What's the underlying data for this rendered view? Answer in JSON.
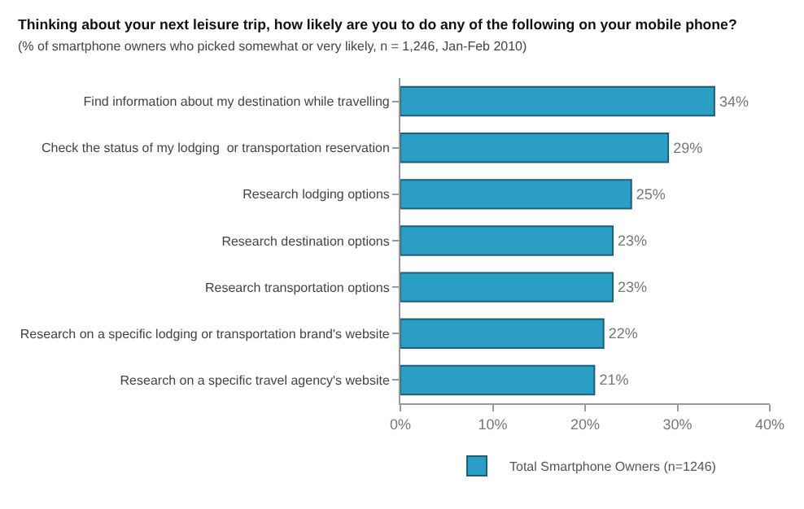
{
  "chart_data": {
    "type": "bar",
    "orientation": "horizontal",
    "title": "Thinking about your next leisure trip, how likely are you to do any of the following on your mobile phone?",
    "subtitle": "(% of smartphone owners who picked somewhat or very likely, n = 1,246, Jan-Feb 2010)",
    "categories": [
      "Find information about my destination while travelling",
      "Check the status of my lodging  or transportation reservation",
      "Research lodging options",
      "Research destination options",
      "Research transportation options",
      "Research on a specific lodging or transportation brand's website",
      "Research on a specific travel agency's website"
    ],
    "series": [
      {
        "name": "Total Smartphone Owners (n=1246)",
        "color": "#2a9ec4",
        "values": [
          34,
          29,
          25,
          23,
          23,
          22,
          21
        ],
        "value_labels": [
          "34%",
          "29%",
          "25%",
          "23%",
          "23%",
          "22%",
          "21%"
        ]
      }
    ],
    "xlim": [
      0,
      40
    ],
    "xticks": [
      {
        "value": 0,
        "label": "0%"
      },
      {
        "value": 10,
        "label": "10%"
      },
      {
        "value": 20,
        "label": "20%"
      },
      {
        "value": 30,
        "label": "30%"
      },
      {
        "value": 40,
        "label": "40%"
      }
    ],
    "legend": "bottom"
  }
}
